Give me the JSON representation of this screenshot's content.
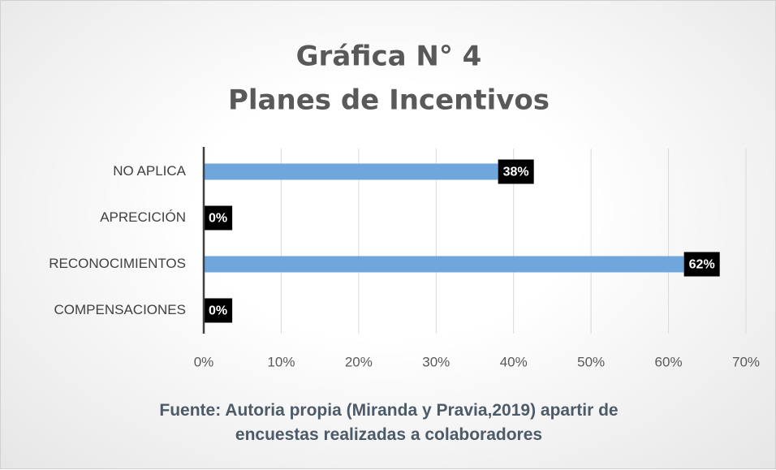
{
  "chart_data": {
    "type": "bar",
    "orientation": "horizontal",
    "title": "Gráfica N° 4",
    "subtitle": "Planes de Incentivos",
    "categories": [
      "NO APLICA",
      "APRECICIÓN",
      "RECONOCIMIENTOS",
      "COMPENSACIONES"
    ],
    "values": [
      38,
      0,
      62,
      0
    ],
    "value_labels": [
      "38%",
      "0%",
      "62%",
      "0%"
    ],
    "color": "#6fa6dc",
    "xlim": [
      0,
      70
    ],
    "xticks": [
      {
        "value": 0,
        "label": "0%"
      },
      {
        "value": 10,
        "label": "10%"
      },
      {
        "value": 20,
        "label": "20%"
      },
      {
        "value": 30,
        "label": "30%"
      },
      {
        "value": 40,
        "label": "40%"
      },
      {
        "value": 50,
        "label": "50%"
      },
      {
        "value": 60,
        "label": "60%"
      },
      {
        "value": 70,
        "label": "70%"
      }
    ],
    "grid": true,
    "source": "Fuente: Autoria propia (Miranda y Pravia,2019) apartir de encuestas realizadas a colaboradores"
  }
}
